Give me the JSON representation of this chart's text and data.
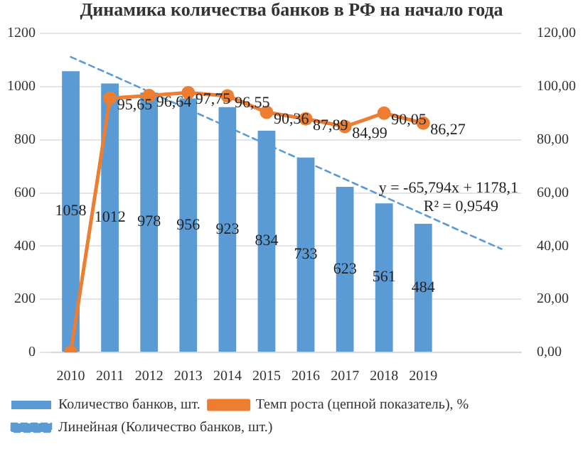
{
  "chart_data": {
    "type": "bar",
    "title": "Динамика количества банков в РФ на начало года",
    "categories": [
      "2010",
      "2011",
      "2012",
      "2013",
      "2014",
      "2015",
      "2016",
      "2017",
      "2018",
      "2019",
      null,
      null
    ],
    "series": [
      {
        "name": "Количество банков, шт.",
        "color": "#5b9bd5",
        "values": [
          1058,
          1012,
          978,
          956,
          923,
          834,
          733,
          623,
          561,
          484,
          null,
          null
        ],
        "value_labels": [
          "1058",
          "1012",
          "978",
          "956",
          "923",
          "834",
          "733",
          "623",
          "561",
          "484",
          null,
          null
        ]
      },
      {
        "name": "Темп роста (цепной показатель), %",
        "type": "line",
        "axis": "y2",
        "color": "#ed7d31",
        "marker": "circle",
        "values": [
          0,
          95.65,
          96.64,
          97.75,
          96.55,
          90.36,
          87.89,
          84.99,
          90.05,
          86.27,
          null,
          null
        ],
        "value_labels": [
          null,
          "95,65",
          "96,64",
          "97,75",
          "96,55",
          "90,36",
          "87,89",
          "84,99",
          "90,05",
          "86,27",
          null,
          null
        ]
      },
      {
        "name": "Линейная (Количество банков, шт.)",
        "type": "line",
        "color": "#5b9bd5",
        "line_style": "dashed",
        "marker": "none",
        "values": [
          1112,
          1047,
          981,
          915,
          849,
          783,
          718,
          652,
          586,
          520,
          454,
          389
        ]
      }
    ],
    "ylim": [
      0,
      1200
    ],
    "yticks": [
      0,
      200,
      400,
      600,
      800,
      1000,
      1200
    ],
    "y2lim": [
      0,
      120
    ],
    "y2ticks": [
      {
        "value": 0,
        "label": "0,00"
      },
      {
        "value": 20,
        "label": "20,00"
      },
      {
        "value": 40,
        "label": "40,00"
      },
      {
        "value": 60,
        "label": "60,00"
      },
      {
        "value": 80,
        "label": "80,00"
      },
      {
        "value": 100,
        "label": "100,00"
      },
      {
        "value": 120,
        "label": "120,00"
      }
    ],
    "annotations": [
      "y = -65,794x + 1178,1",
      "R² = 0,9549"
    ],
    "grid": "y",
    "legend": "bottom"
  }
}
